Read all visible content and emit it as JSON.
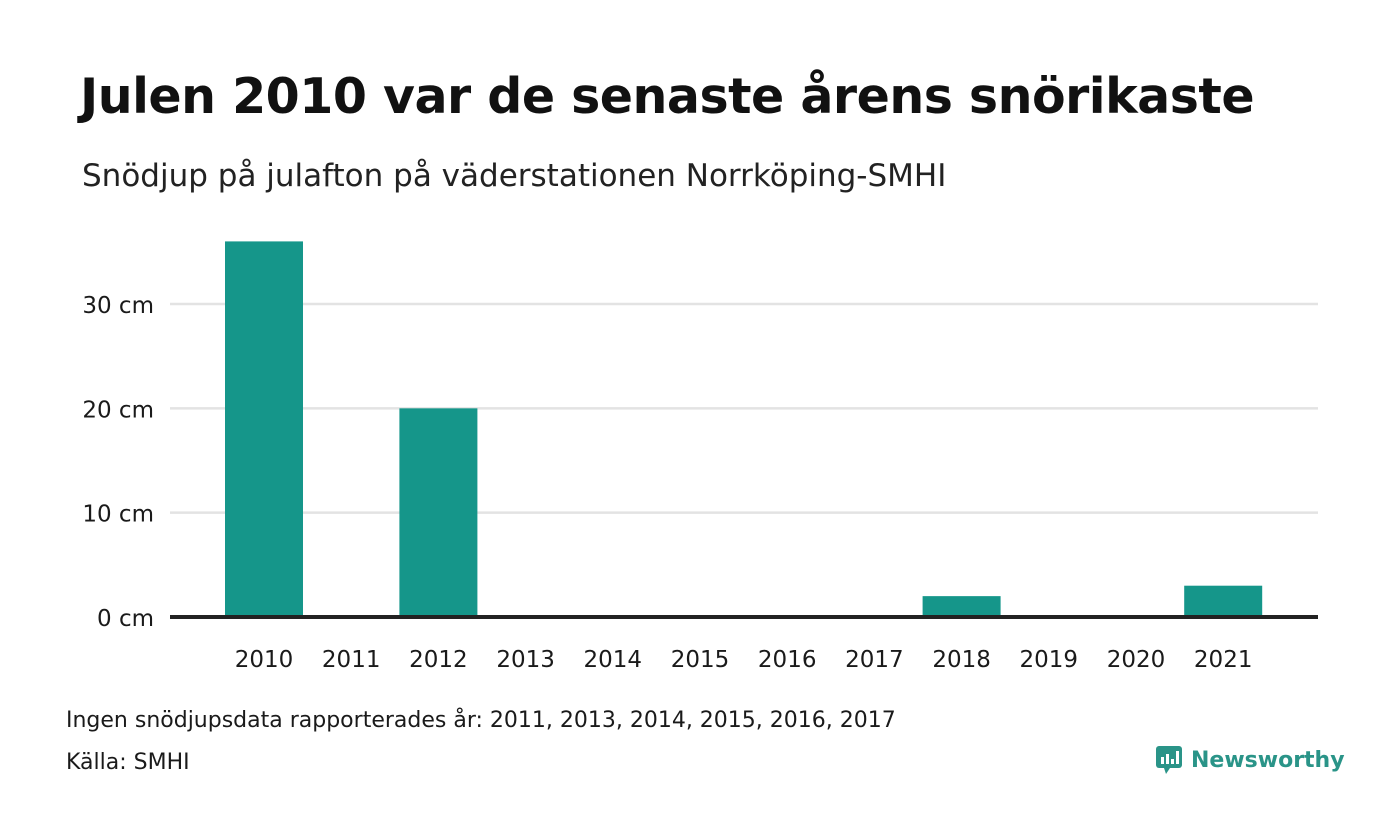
{
  "title": "Julen 2010 var de senaste årens snörikaste",
  "subtitle": "Snödjup på julafton på väderstationen Norrköping-SMHI",
  "note": "Ingen snödjupsdata rapporterades år: 2011, 2013, 2014, 2015, 2016, 2017",
  "source": "Källa: SMHI",
  "brand": {
    "name": "Newsworthy",
    "color": "#2a9488",
    "icon": "newsworthy-logo-icon"
  },
  "colors": {
    "bar": "#15968a",
    "grid": "#e3e3e3",
    "baseline": "#222222"
  },
  "chart_data": {
    "type": "bar",
    "title": "Julen 2010 var de senaste årens snörikaste",
    "subtitle": "Snödjup på julafton på väderstationen Norrköping-SMHI",
    "categories": [
      "2010",
      "2011",
      "2012",
      "2013",
      "2014",
      "2015",
      "2016",
      "2017",
      "2018",
      "2019",
      "2020",
      "2021"
    ],
    "values": [
      36,
      null,
      20,
      null,
      null,
      null,
      null,
      null,
      2,
      0,
      0,
      3
    ],
    "ylim": [
      0,
      36
    ],
    "yticks": [
      0,
      10,
      20,
      30
    ],
    "ytick_labels": [
      "0 cm",
      "10 cm",
      "20 cm",
      "30 cm"
    ],
    "grid": true,
    "legend": "none"
  }
}
